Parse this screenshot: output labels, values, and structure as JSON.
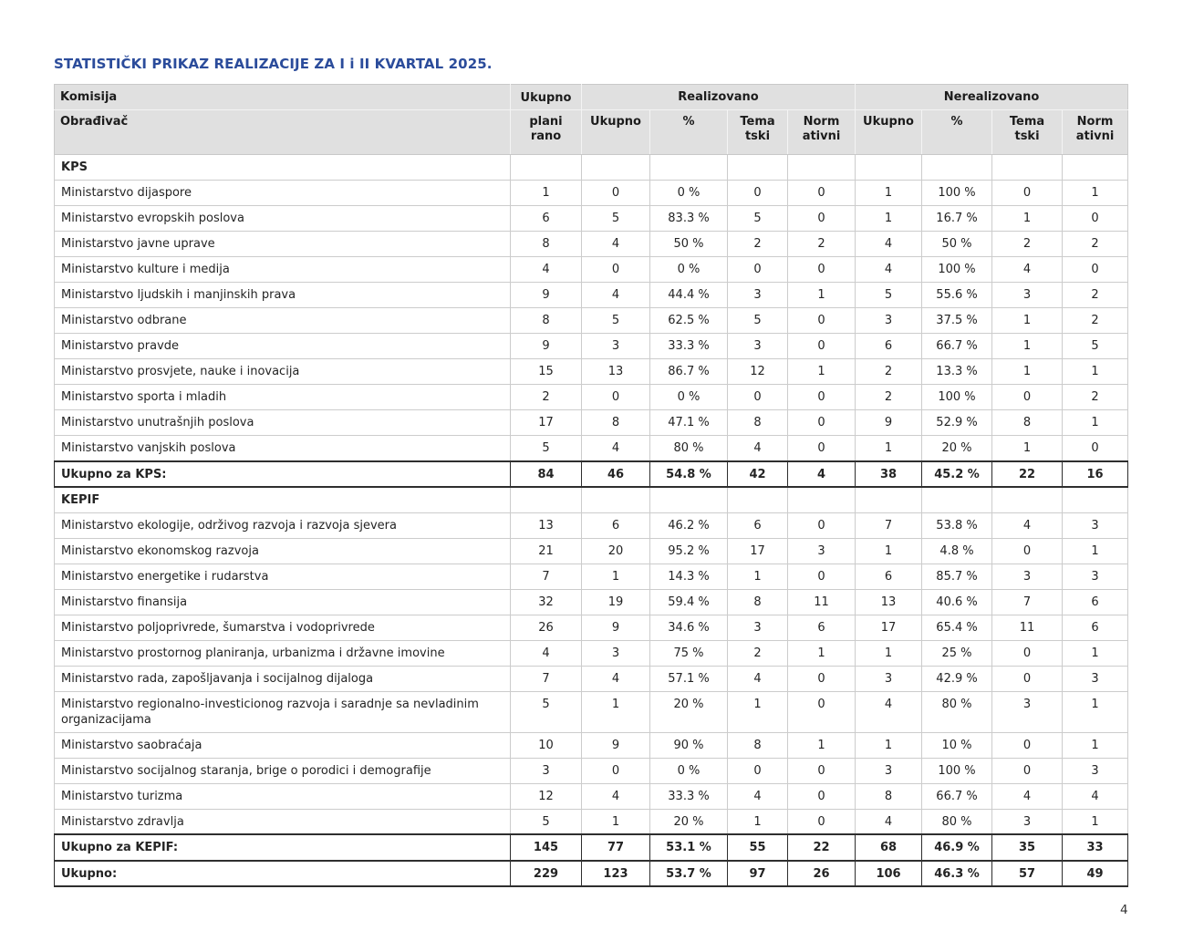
{
  "title": "STATISTIČKI PRIKAZ REALIZACIJE ZA I i II KVARTAL 2025.",
  "page": {
    "number": "4"
  },
  "colors": {
    "title_blue": "#2b4c9b",
    "header_gray": "#e0e0e0",
    "grid_line": "#cccccc",
    "strong_border": "#2e2e2e"
  },
  "table": {
    "header": {
      "komisija": "Komisija",
      "obradjivac": "Obrađivač",
      "planned_line1": "Ukupno",
      "planned_line2": "plani\nrano",
      "realized_group": "Realizovano",
      "unrealized_group": "Nerealizovano",
      "sub": [
        "Ukupno",
        "%",
        "Tema\ntski",
        "Norm\nativni",
        "Ukupno",
        "%",
        "Tema\ntski",
        "Norm\nativni"
      ]
    },
    "sections": [
      {
        "name": "KPS",
        "rows": [
          {
            "label": "Ministarstvo dijaspore",
            "values": [
              "1",
              "0",
              "0 %",
              "0",
              "0",
              "1",
              "100 %",
              "0",
              "1"
            ]
          },
          {
            "label": "Ministarstvo evropskih poslova",
            "values": [
              "6",
              "5",
              "83.3 %",
              "5",
              "0",
              "1",
              "16.7 %",
              "1",
              "0"
            ]
          },
          {
            "label": "Ministarstvo javne uprave",
            "values": [
              "8",
              "4",
              "50 %",
              "2",
              "2",
              "4",
              "50 %",
              "2",
              "2"
            ]
          },
          {
            "label": "Ministarstvo kulture i medija",
            "values": [
              "4",
              "0",
              "0 %",
              "0",
              "0",
              "4",
              "100 %",
              "4",
              "0"
            ]
          },
          {
            "label": "Ministarstvo ljudskih i manjinskih prava",
            "values": [
              "9",
              "4",
              "44.4 %",
              "3",
              "1",
              "5",
              "55.6 %",
              "3",
              "2"
            ]
          },
          {
            "label": "Ministarstvo odbrane",
            "values": [
              "8",
              "5",
              "62.5 %",
              "5",
              "0",
              "3",
              "37.5 %",
              "1",
              "2"
            ]
          },
          {
            "label": "Ministarstvo pravde",
            "values": [
              "9",
              "3",
              "33.3 %",
              "3",
              "0",
              "6",
              "66.7 %",
              "1",
              "5"
            ]
          },
          {
            "label": "Ministarstvo prosvjete, nauke i inovacija",
            "values": [
              "15",
              "13",
              "86.7 %",
              "12",
              "1",
              "2",
              "13.3 %",
              "1",
              "1"
            ]
          },
          {
            "label": "Ministarstvo sporta i mladih",
            "values": [
              "2",
              "0",
              "0 %",
              "0",
              "0",
              "2",
              "100 %",
              "0",
              "2"
            ]
          },
          {
            "label": "Ministarstvo unutrašnjih poslova",
            "values": [
              "17",
              "8",
              "47.1 %",
              "8",
              "0",
              "9",
              "52.9 %",
              "8",
              "1"
            ]
          },
          {
            "label": "Ministarstvo vanjskih poslova",
            "values": [
              "5",
              "4",
              "80 %",
              "4",
              "0",
              "1",
              "20 %",
              "1",
              "0"
            ]
          }
        ],
        "total": {
          "label": "Ukupno za KPS:",
          "values": [
            "84",
            "46",
            "54.8 %",
            "42",
            "4",
            "38",
            "45.2 %",
            "22",
            "16"
          ]
        }
      },
      {
        "name": "KEPIF",
        "rows": [
          {
            "label": "Ministarstvo ekologije, održivog razvoja i razvoja sjevera",
            "values": [
              "13",
              "6",
              "46.2 %",
              "6",
              "0",
              "7",
              "53.8 %",
              "4",
              "3"
            ]
          },
          {
            "label": "Ministarstvo ekonomskog razvoja",
            "values": [
              "21",
              "20",
              "95.2 %",
              "17",
              "3",
              "1",
              "4.8 %",
              "0",
              "1"
            ]
          },
          {
            "label": "Ministarstvo energetike i rudarstva",
            "values": [
              "7",
              "1",
              "14.3 %",
              "1",
              "0",
              "6",
              "85.7 %",
              "3",
              "3"
            ]
          },
          {
            "label": "Ministarstvo finansija",
            "values": [
              "32",
              "19",
              "59.4 %",
              "8",
              "11",
              "13",
              "40.6 %",
              "7",
              "6"
            ]
          },
          {
            "label": "Ministarstvo poljoprivrede, šumarstva i vodoprivrede",
            "values": [
              "26",
              "9",
              "34.6 %",
              "3",
              "6",
              "17",
              "65.4 %",
              "11",
              "6"
            ]
          },
          {
            "label": "Ministarstvo prostornog planiranja, urbanizma i državne imovine",
            "values": [
              "4",
              "3",
              "75 %",
              "2",
              "1",
              "1",
              "25 %",
              "0",
              "1"
            ]
          },
          {
            "label": "Ministarstvo rada, zapošljavanja i socijalnog dijaloga",
            "values": [
              "7",
              "4",
              "57.1 %",
              "4",
              "0",
              "3",
              "42.9 %",
              "0",
              "3"
            ]
          },
          {
            "label": "Ministarstvo regionalno-investicionog razvoja i saradnje sa nevladinim organizacijama",
            "values": [
              "5",
              "1",
              "20 %",
              "1",
              "0",
              "4",
              "80 %",
              "3",
              "1"
            ]
          },
          {
            "label": "Ministarstvo saobraćaja",
            "values": [
              "10",
              "9",
              "90 %",
              "8",
              "1",
              "1",
              "10 %",
              "0",
              "1"
            ]
          },
          {
            "label": "Ministarstvo socijalnog staranja, brige o porodici i demografije",
            "values": [
              "3",
              "0",
              "0 %",
              "0",
              "0",
              "3",
              "100 %",
              "0",
              "3"
            ]
          },
          {
            "label": "Ministarstvo turizma",
            "values": [
              "12",
              "4",
              "33.3 %",
              "4",
              "0",
              "8",
              "66.7 %",
              "4",
              "4"
            ]
          },
          {
            "label": "Ministarstvo zdravlja",
            "values": [
              "5",
              "1",
              "20 %",
              "1",
              "0",
              "4",
              "80 %",
              "3",
              "1"
            ]
          }
        ],
        "total": {
          "label": "Ukupno za KEPIF:",
          "values": [
            "145",
            "77",
            "53.1 %",
            "55",
            "22",
            "68",
            "46.9 %",
            "35",
            "33"
          ]
        }
      }
    ],
    "grand_total": {
      "label": "Ukupno:",
      "values": [
        "229",
        "123",
        "53.7 %",
        "97",
        "26",
        "106",
        "46.3 %",
        "57",
        "49"
      ]
    }
  }
}
